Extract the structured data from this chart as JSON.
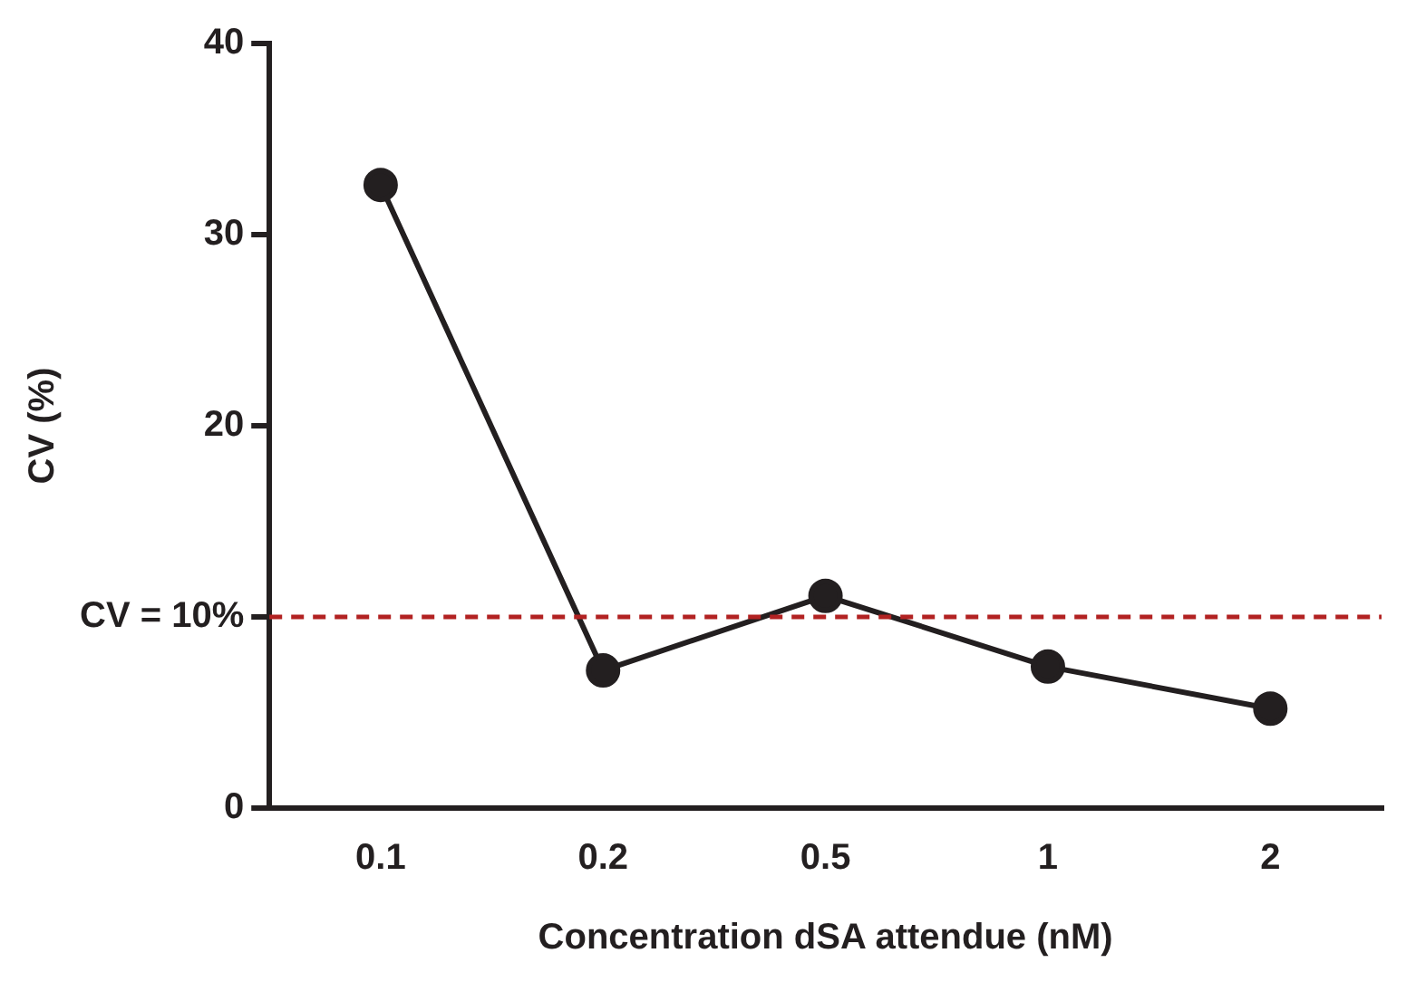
{
  "chart_data": {
    "type": "line",
    "xlabel": "Concentration dSA attendue (nM)",
    "ylabel": "CV (%)",
    "categories": [
      "0.1",
      "0.2",
      "0.5",
      "1",
      "2"
    ],
    "series": [
      {
        "color": "#231f20",
        "values": [
          32.6,
          7.2,
          11.1,
          7.4,
          5.2
        ]
      }
    ],
    "ylim": [
      0,
      40
    ],
    "yticks": [
      0,
      {
        "value": 10,
        "label": "CV = 10%"
      },
      20,
      30,
      40
    ],
    "ref_lines": [
      {
        "axis": "y",
        "value": 10,
        "color": "#b22222",
        "line_style": "dashed"
      }
    ],
    "marker": "circle",
    "line_style": "solid",
    "grid": false,
    "legend": false
  }
}
